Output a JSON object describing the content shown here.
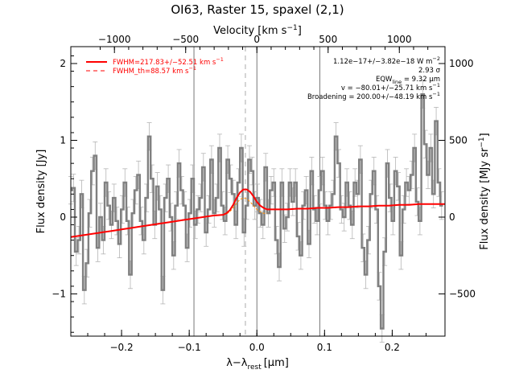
{
  "chart_data": {
    "type": "line",
    "title": "OI63, Raster 15, spaxel (2,1)",
    "xlabel": "λ−λ",
    "xlabel_sub": "rest",
    "xlabel_unit": "[μm]",
    "ylabel": "Flux density [Jy]",
    "y2label": "Flux density [MJy sr",
    "y2label_sup": "−1",
    "y2label_tail": "]",
    "top_label": "Velocity [km s",
    "top_label_sup": "−1",
    "top_label_tail": "]",
    "xlim": [
      -0.275,
      0.278
    ],
    "ylim": [
      -1.55,
      2.22
    ],
    "x_ticks": [
      -0.2,
      -0.1,
      0.0,
      0.1,
      0.2
    ],
    "x_tick_labels": [
      "−0.2",
      "−0.1",
      "0.0",
      "0.1",
      "0.2"
    ],
    "y_ticks": [
      -1,
      0,
      1,
      2
    ],
    "y_tick_labels": [
      "−1",
      "0",
      "1",
      "2"
    ],
    "y2_ticks": [
      -500,
      0,
      500,
      1000
    ],
    "y2_tick_labels": [
      "−500",
      "0",
      "500",
      "1000"
    ],
    "y2_per_y": 500.0,
    "vel_ticks": [
      -1000,
      -500,
      0,
      500,
      1000
    ],
    "vel_tick_labels": [
      "−1000",
      "−500",
      "0",
      "500",
      "1000"
    ],
    "vel_zero_x": 0.0,
    "vel_per_x": 4750.0,
    "vlines_solid": [
      -0.093,
      0.0,
      0.093
    ],
    "vline_dashed": -0.017,
    "legend": {
      "placement": "top-left",
      "items": [
        {
          "label": "FWHM=217.83+/−52.51 km s",
          "sup": "−1",
          "style": "solid",
          "color": "#ff0000"
        },
        {
          "label": "FWHM_th=88.57 km s",
          "sup": "−1",
          "style": "dashed",
          "color": "#ff0000"
        }
      ]
    },
    "annotations": [
      "1.12e−17+/−3.82e−18 W m",
      "2.93 σ",
      "EQW",
      "v = −80.01+/−25.71 km s",
      "Broadening = 200.00+/−48.19 km s"
    ],
    "annotation_parts": {
      "flux_sup": "−2",
      "eqw_sub": "line",
      "eqw_value": " = 9.32 μm",
      "v_sup": "−1",
      "broad_sup": "−1"
    },
    "colors": {
      "data": "#808080",
      "fit": "#ff0000",
      "component": "#ff8c00",
      "vline": "#777777",
      "axes": "#000000"
    },
    "series": [
      {
        "name": "spectrum",
        "style": "histogram",
        "x": [
          -0.275,
          -0.271,
          -0.267,
          -0.263,
          -0.259,
          -0.255,
          -0.251,
          -0.247,
          -0.243,
          -0.239,
          -0.235,
          -0.231,
          -0.227,
          -0.223,
          -0.219,
          -0.215,
          -0.211,
          -0.207,
          -0.203,
          -0.199,
          -0.195,
          -0.191,
          -0.187,
          -0.183,
          -0.179,
          -0.175,
          -0.171,
          -0.167,
          -0.163,
          -0.159,
          -0.155,
          -0.151,
          -0.147,
          -0.143,
          -0.139,
          -0.135,
          -0.131,
          -0.127,
          -0.123,
          -0.119,
          -0.115,
          -0.111,
          -0.107,
          -0.103,
          -0.099,
          -0.095,
          -0.091,
          -0.087,
          -0.083,
          -0.079,
          -0.075,
          -0.071,
          -0.067,
          -0.063,
          -0.059,
          -0.055,
          -0.051,
          -0.047,
          -0.043,
          -0.039,
          -0.035,
          -0.031,
          -0.027,
          -0.023,
          -0.019,
          -0.015,
          -0.011,
          -0.007,
          -0.003,
          0.001,
          0.005,
          0.009,
          0.013,
          0.017,
          0.021,
          0.025,
          0.029,
          0.033,
          0.037,
          0.041,
          0.045,
          0.049,
          0.053,
          0.057,
          0.061,
          0.065,
          0.069,
          0.073,
          0.077,
          0.081,
          0.085,
          0.089,
          0.093,
          0.097,
          0.101,
          0.105,
          0.109,
          0.113,
          0.117,
          0.121,
          0.125,
          0.129,
          0.133,
          0.137,
          0.141,
          0.145,
          0.149,
          0.153,
          0.157,
          0.161,
          0.165,
          0.169,
          0.173,
          0.177,
          0.181,
          0.185,
          0.189,
          0.193,
          0.197,
          0.201,
          0.205,
          0.209,
          0.213,
          0.217,
          0.221,
          0.225,
          0.229,
          0.233,
          0.237,
          0.241,
          0.245,
          0.249,
          0.253,
          0.257,
          0.261,
          0.265,
          0.269,
          0.273
        ],
        "y": [
          0.35,
          0.38,
          -0.45,
          -0.3,
          0.3,
          -0.95,
          -0.6,
          0.05,
          0.6,
          0.8,
          -0.4,
          0.0,
          -0.3,
          0.45,
          0.15,
          -0.1,
          0.25,
          -0.05,
          -0.35,
          0.1,
          0.45,
          -0.05,
          -0.75,
          0.05,
          0.35,
          0.55,
          -0.05,
          -0.3,
          0.25,
          1.05,
          0.5,
          -0.1,
          0.4,
          0.1,
          -0.95,
          0.25,
          0.5,
          0.0,
          -0.5,
          0.15,
          0.7,
          0.35,
          0.15,
          -0.4,
          0.05,
          0.5,
          -0.1,
          0.1,
          0.25,
          0.65,
          -0.2,
          0.1,
          0.75,
          0.05,
          0.25,
          0.9,
          0.15,
          -0.05,
          0.75,
          0.5,
          0.3,
          -0.1,
          0.45,
          0.9,
          -0.2,
          0.15,
          0.75,
          0.6,
          0.15,
          0.25,
          0.05,
          -0.1,
          0.65,
          0.05,
          0.35,
          0.45,
          -0.3,
          -0.65,
          0.45,
          -0.15,
          0.0,
          0.45,
          0.2,
          0.45,
          -0.25,
          -0.5,
          0.15,
          0.35,
          -0.35,
          0.6,
          0.1,
          -0.05,
          0.35,
          0.6,
          0.15,
          -0.05,
          0.15,
          0.3,
          1.05,
          0.7,
          0.1,
          0.0,
          0.45,
          0.15,
          -0.1,
          0.45,
          0.3,
          0.75,
          -0.4,
          -0.75,
          -0.3,
          0.3,
          0.6,
          0.1,
          -0.9,
          -1.45,
          -0.45,
          0.7,
          0.25,
          -0.05,
          0.6,
          0.4,
          -0.5,
          0.1,
          0.45,
          0.35,
          0.55,
          0.9,
          0.2,
          -0.05,
          1.6,
          0.95,
          0.55,
          0.9,
          0.3,
          1.25,
          0.45,
          0.15
        ],
        "err": 0.18
      },
      {
        "name": "fit",
        "style": "solid",
        "x": [
          -0.275,
          -0.26,
          -0.245,
          -0.23,
          -0.215,
          -0.2,
          -0.185,
          -0.17,
          -0.155,
          -0.14,
          -0.125,
          -0.11,
          -0.095,
          -0.08,
          -0.065,
          -0.05,
          -0.045,
          -0.04,
          -0.035,
          -0.03,
          -0.025,
          -0.02,
          -0.015,
          -0.01,
          -0.005,
          0.0,
          0.005,
          0.01,
          0.015,
          0.02,
          0.025,
          0.03,
          0.045,
          0.06,
          0.075,
          0.09,
          0.105,
          0.12,
          0.135,
          0.15,
          0.165,
          0.18,
          0.195,
          0.21,
          0.225,
          0.24,
          0.255,
          0.27,
          0.278
        ],
        "y": [
          -0.26,
          -0.24,
          -0.22,
          -0.2,
          -0.18,
          -0.16,
          -0.14,
          -0.12,
          -0.1,
          -0.08,
          -0.06,
          -0.04,
          -0.02,
          0.0,
          0.02,
          0.03,
          0.05,
          0.09,
          0.16,
          0.25,
          0.32,
          0.36,
          0.36,
          0.33,
          0.27,
          0.2,
          0.15,
          0.12,
          0.1,
          0.1,
          0.1,
          0.1,
          0.1,
          0.11,
          0.11,
          0.12,
          0.12,
          0.13,
          0.13,
          0.14,
          0.14,
          0.15,
          0.15,
          0.16,
          0.16,
          0.17,
          0.17,
          0.17,
          0.17
        ]
      },
      {
        "name": "component",
        "style": "dashed",
        "x": [
          -0.05,
          -0.045,
          -0.04,
          -0.035,
          -0.03,
          -0.025,
          -0.02,
          -0.015,
          -0.01,
          -0.005,
          0.0,
          0.005,
          0.01,
          0.015
        ],
        "y": [
          0.03,
          0.04,
          0.07,
          0.12,
          0.18,
          0.23,
          0.25,
          0.24,
          0.2,
          0.15,
          0.1,
          0.07,
          0.05,
          0.05
        ]
      }
    ]
  }
}
